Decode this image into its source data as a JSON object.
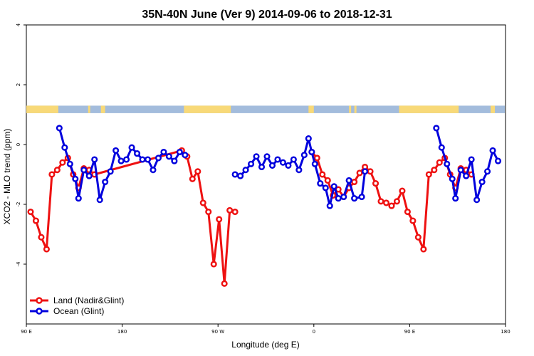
{
  "chart_data": {
    "type": "line",
    "title": "35N-40N June (Ver 9)   2014-09-06 to 2018-12-31",
    "xlabel": "Longitude (deg E)",
    "ylabel": "XCO2 - MLO trend (ppm)",
    "xlim": [
      90,
      540
    ],
    "ylim": [
      -6,
      4
    ],
    "x_ticks": [
      {
        "value": 90,
        "label": "90 E"
      },
      {
        "value": 180,
        "label": "180"
      },
      {
        "value": 270,
        "label": "90 W"
      },
      {
        "value": 360,
        "label": "0"
      },
      {
        "value": 450,
        "label": "90 E"
      },
      {
        "value": 540,
        "label": "180"
      }
    ],
    "y_ticks": [
      {
        "value": 4,
        "label": "4"
      },
      {
        "value": 2,
        "label": "2"
      },
      {
        "value": 0,
        "label": "0"
      },
      {
        "value": -2,
        "label": "-2"
      },
      {
        "value": -4,
        "label": "-4"
      }
    ],
    "land_ocean_strip": {
      "y_range": [
        1.05,
        1.3
      ],
      "ocean_color": "#a3bcdc",
      "land_color": "#f8d978",
      "land_segments": [
        [
          90,
          120
        ],
        [
          148,
          150
        ],
        [
          160,
          164
        ],
        [
          238,
          282
        ],
        [
          355,
          360
        ],
        [
          393,
          395
        ],
        [
          398,
          400
        ],
        [
          440,
          496
        ],
        [
          526,
          530
        ]
      ]
    },
    "series": [
      {
        "name": "Land (Nadir&Glint)",
        "color": "#ee1111",
        "segments": [
          [
            [
              94,
              -2.25
            ],
            [
              99,
              -2.55
            ],
            [
              104,
              -3.1
            ],
            [
              109,
              -3.5
            ],
            [
              114,
              -1.0
            ],
            [
              119,
              -0.85
            ],
            [
              124,
              -0.6
            ],
            [
              129,
              -0.45
            ],
            [
              134,
              -1.0
            ],
            [
              139,
              -1.45
            ],
            [
              144,
              -0.8
            ],
            [
              149,
              -0.85
            ],
            [
              154,
              -1.0
            ],
            [
              236,
              -0.2
            ],
            [
              241,
              -0.4
            ],
            [
              246,
              -1.15
            ],
            [
              251,
              -0.9
            ],
            [
              256,
              -1.95
            ],
            [
              261,
              -2.25
            ],
            [
              266,
              -4.0
            ],
            [
              271,
              -2.5
            ],
            [
              276,
              -4.65
            ],
            [
              281,
              -2.2
            ],
            [
              286,
              -2.25
            ]
          ],
          [
            [
              358,
              -0.25
            ],
            [
              363,
              -0.45
            ],
            [
              368,
              -1.0
            ],
            [
              373,
              -1.2
            ],
            [
              378,
              -1.7
            ],
            [
              383,
              -1.5
            ],
            [
              388,
              -1.75
            ],
            [
              393,
              -1.45
            ],
            [
              398,
              -1.25
            ],
            [
              403,
              -0.95
            ],
            [
              408,
              -0.75
            ],
            [
              413,
              -0.9
            ],
            [
              418,
              -1.3
            ],
            [
              423,
              -1.9
            ],
            [
              428,
              -1.95
            ],
            [
              433,
              -2.05
            ],
            [
              438,
              -1.9
            ],
            [
              443,
              -1.55
            ],
            [
              448,
              -2.25
            ],
            [
              453,
              -2.55
            ],
            [
              458,
              -3.1
            ],
            [
              463,
              -3.5
            ],
            [
              468,
              -1.0
            ],
            [
              473,
              -0.85
            ],
            [
              478,
              -0.6
            ],
            [
              483,
              -0.45
            ],
            [
              488,
              -1.0
            ],
            [
              493,
              -1.45
            ],
            [
              498,
              -0.8
            ],
            [
              503,
              -0.85
            ],
            [
              508,
              -1.0
            ]
          ]
        ]
      },
      {
        "name": "Ocean (Glint)",
        "color": "#0000dd",
        "segments": [
          [
            [
              121,
              0.55
            ],
            [
              126,
              -0.1
            ],
            [
              131,
              -0.65
            ],
            [
              136,
              -1.15
            ],
            [
              139,
              -1.8
            ],
            [
              144,
              -0.85
            ],
            [
              149,
              -1.05
            ],
            [
              154,
              -0.5
            ],
            [
              159,
              -1.85
            ],
            [
              164,
              -1.25
            ],
            [
              169,
              -0.9
            ],
            [
              174,
              -0.2
            ],
            [
              179,
              -0.55
            ],
            [
              184,
              -0.5
            ],
            [
              189,
              -0.1
            ],
            [
              194,
              -0.3
            ],
            [
              199,
              -0.5
            ],
            [
              204,
              -0.5
            ],
            [
              209,
              -0.85
            ],
            [
              214,
              -0.45
            ],
            [
              219,
              -0.25
            ],
            [
              224,
              -0.4
            ],
            [
              229,
              -0.55
            ],
            [
              234,
              -0.25
            ],
            [
              239,
              -0.35
            ]
          ],
          [
            [
              286,
              -1.0
            ],
            [
              291,
              -1.05
            ],
            [
              296,
              -0.85
            ],
            [
              301,
              -0.65
            ],
            [
              306,
              -0.4
            ],
            [
              311,
              -0.75
            ],
            [
              316,
              -0.4
            ],
            [
              321,
              -0.7
            ],
            [
              326,
              -0.5
            ],
            [
              331,
              -0.6
            ],
            [
              336,
              -0.7
            ],
            [
              341,
              -0.5
            ],
            [
              346,
              -0.85
            ],
            [
              351,
              -0.35
            ],
            [
              355,
              0.2
            ],
            [
              358,
              -0.25
            ],
            [
              361,
              -0.65
            ],
            [
              366,
              -1.3
            ],
            [
              371,
              -1.45
            ],
            [
              375,
              -2.05
            ],
            [
              379,
              -1.4
            ],
            [
              383,
              -1.8
            ],
            [
              388,
              -1.75
            ],
            [
              393,
              -1.2
            ],
            [
              398,
              -1.8
            ],
            [
              405,
              -1.75
            ],
            [
              408,
              -0.9
            ]
          ],
          [
            [
              475,
              0.55
            ],
            [
              480,
              -0.1
            ],
            [
              485,
              -0.65
            ],
            [
              490,
              -1.15
            ],
            [
              493,
              -1.8
            ],
            [
              498,
              -0.85
            ],
            [
              503,
              -1.05
            ],
            [
              508,
              -0.5
            ],
            [
              513,
              -1.85
            ],
            [
              518,
              -1.25
            ],
            [
              523,
              -0.9
            ],
            [
              528,
              -0.2
            ],
            [
              533,
              -0.55
            ]
          ]
        ]
      }
    ],
    "legend": {
      "position": "bottom-left"
    }
  }
}
